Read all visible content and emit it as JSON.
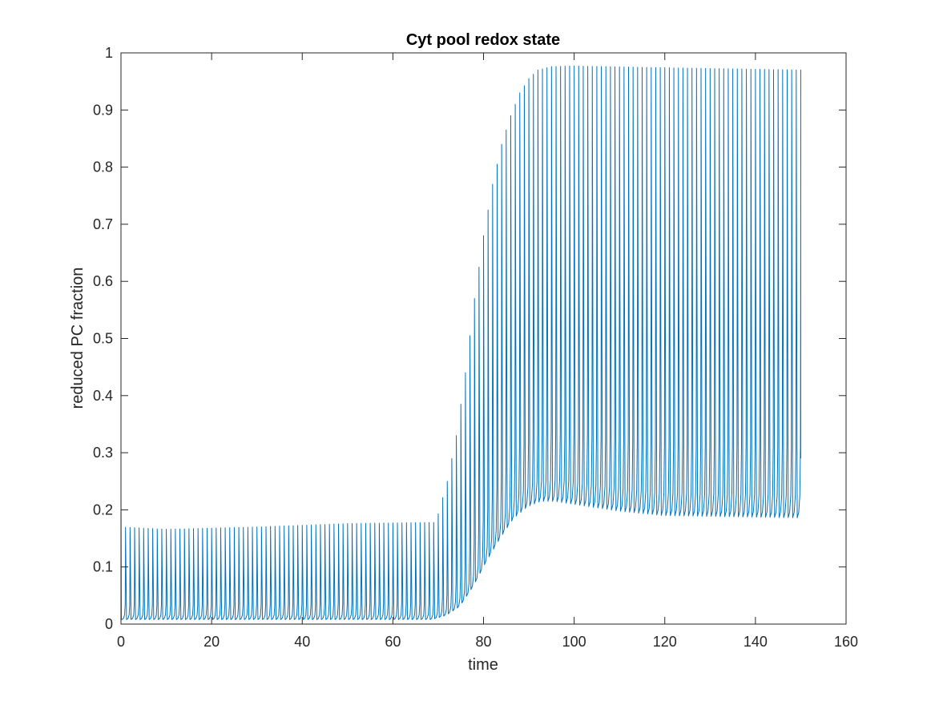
{
  "chart_data": {
    "type": "line",
    "title": "Cyt pool redox state",
    "xlabel": "time",
    "ylabel": "reduced PC fraction",
    "xlim": [
      0,
      160
    ],
    "ylim": [
      0,
      1
    ],
    "xticks": [
      0,
      20,
      40,
      60,
      80,
      100,
      120,
      140,
      160
    ],
    "yticks": [
      0,
      0.1,
      0.2,
      0.3,
      0.4,
      0.5,
      0.6,
      0.7,
      0.8,
      0.9,
      1
    ],
    "ytick_labels": [
      "0",
      "0.1",
      "0.2",
      "0.3",
      "0.4",
      "0.5",
      "0.6",
      "0.7",
      "0.8",
      "0.9",
      "1"
    ],
    "grid": false,
    "box": true,
    "series": [
      {
        "color": "#0072BD",
        "oscillation_period": 1,
        "x_range": [
          0,
          150
        ],
        "peak_envelope": [
          [
            0,
            0.17
          ],
          [
            10,
            0.166
          ],
          [
            30,
            0.17
          ],
          [
            50,
            0.176
          ],
          [
            69,
            0.178
          ],
          [
            70,
            0.193
          ],
          [
            72,
            0.25
          ],
          [
            74,
            0.33
          ],
          [
            76,
            0.44
          ],
          [
            78,
            0.57
          ],
          [
            80,
            0.68
          ],
          [
            82,
            0.77
          ],
          [
            84,
            0.84
          ],
          [
            86,
            0.89
          ],
          [
            88,
            0.93
          ],
          [
            90,
            0.955
          ],
          [
            92,
            0.97
          ],
          [
            95,
            0.976
          ],
          [
            100,
            0.977
          ],
          [
            120,
            0.974
          ],
          [
            150,
            0.97
          ]
        ],
        "trough_envelope": [
          [
            0,
            0.008
          ],
          [
            69,
            0.008
          ],
          [
            72,
            0.015
          ],
          [
            75,
            0.03
          ],
          [
            78,
            0.065
          ],
          [
            81,
            0.11
          ],
          [
            84,
            0.15
          ],
          [
            87,
            0.185
          ],
          [
            90,
            0.205
          ],
          [
            93,
            0.215
          ],
          [
            96,
            0.215
          ],
          [
            100,
            0.21
          ],
          [
            110,
            0.198
          ],
          [
            120,
            0.19
          ],
          [
            150,
            0.186
          ]
        ],
        "end_value": 0.29
      }
    ]
  }
}
